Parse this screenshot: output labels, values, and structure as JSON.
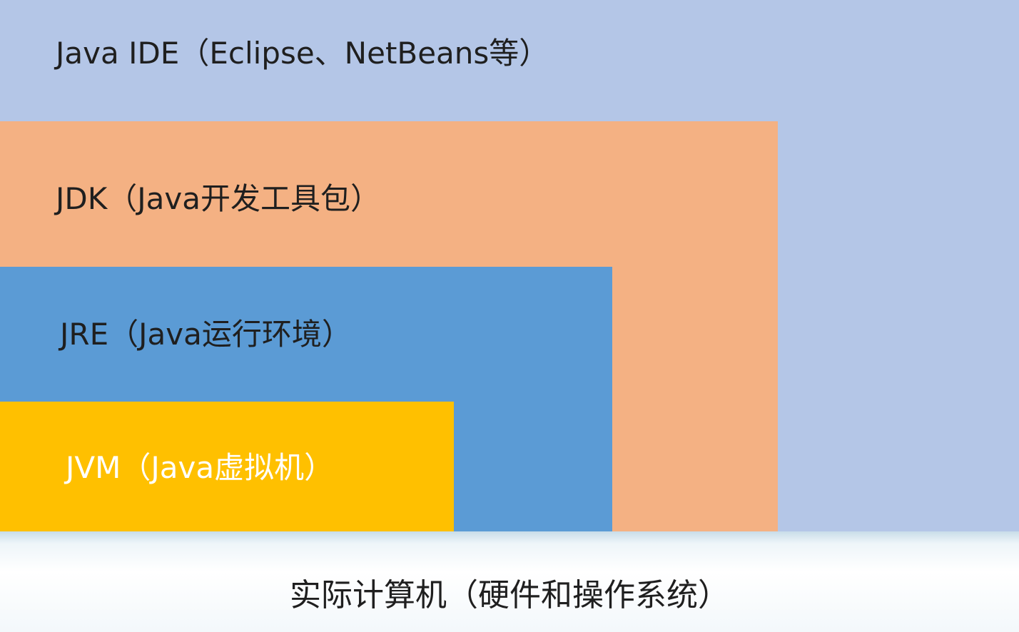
{
  "layers": {
    "ide": {
      "label": "Java IDE（Eclipse、NetBeans等）",
      "color": "#b4c6e7"
    },
    "jdk": {
      "label": "JDK（Java开发工具包）",
      "color": "#f4b183"
    },
    "jre": {
      "label": "JRE（Java运行环境）",
      "color": "#5b9bd5"
    },
    "jvm": {
      "label": "JVM（Java虚拟机）",
      "color": "#ffc000",
      "text_color": "#ffffff"
    },
    "base": {
      "label": "实际计算机（硬件和操作系统）"
    }
  },
  "colors": {
    "text_dark": "#1f1f1f"
  }
}
